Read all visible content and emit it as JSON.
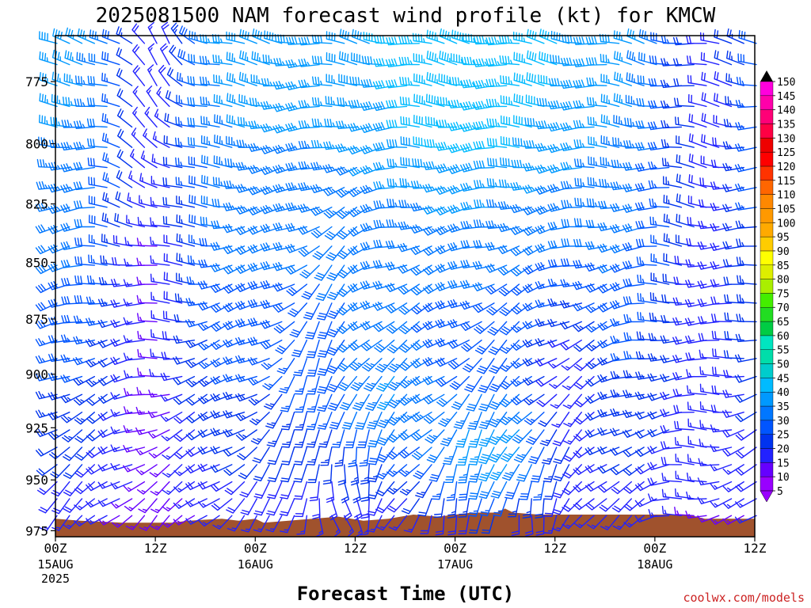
{
  "chart_data": {
    "type": "wind-barb time-height profile",
    "title": "2025081500 NAM forecast wind profile (kt) for KMCW",
    "xlabel": "Forecast Time (UTC)",
    "ylabel": "",
    "x_axis": {
      "unit": "hours",
      "range": [
        0,
        84
      ],
      "ticks": [
        {
          "hour": 0,
          "label": "00Z",
          "sub": [
            "15AUG",
            "2025"
          ]
        },
        {
          "hour": 12,
          "label": "12Z",
          "sub": []
        },
        {
          "hour": 24,
          "label": "00Z",
          "sub": [
            "16AUG"
          ]
        },
        {
          "hour": 36,
          "label": "12Z",
          "sub": []
        },
        {
          "hour": 48,
          "label": "00Z",
          "sub": [
            "17AUG"
          ]
        },
        {
          "hour": 60,
          "label": "12Z",
          "sub": []
        },
        {
          "hour": 72,
          "label": "00Z",
          "sub": [
            "18AUG"
          ]
        },
        {
          "hour": 84,
          "label": "12Z",
          "sub": []
        }
      ]
    },
    "y_axis": {
      "unit": "hPa",
      "range": [
        978,
        757
      ],
      "scale": "log",
      "ticks": [
        775,
        800,
        825,
        850,
        875,
        900,
        925,
        950,
        975
      ]
    },
    "color_scale": {
      "unit": "kt",
      "levels": [
        5,
        10,
        15,
        20,
        25,
        30,
        35,
        40,
        45,
        50,
        55,
        60,
        65,
        70,
        75,
        80,
        85,
        90,
        95,
        100,
        105,
        110,
        115,
        120,
        125,
        130,
        135,
        140,
        145,
        150
      ],
      "colors": [
        "#9900ff",
        "#6600ff",
        "#2222ff",
        "#0033ee",
        "#0055ff",
        "#0077ff",
        "#0099ff",
        "#00bbff",
        "#00cccc",
        "#00ddaa",
        "#00e5c0",
        "#00cc44",
        "#22dd22",
        "#44ee00",
        "#aaee00",
        "#ddee00",
        "#ffff00",
        "#ffcc00",
        "#ffaa00",
        "#ff9900",
        "#ff8800",
        "#ff6600",
        "#ff3300",
        "#ff0000",
        "#ee0000",
        "#ff0044",
        "#ff0077",
        "#ff00aa",
        "#ff00dd",
        "#ff00ff"
      ]
    },
    "ground": {
      "color": "#a0522d",
      "surface_pressure": [
        {
          "hour": 0,
          "hPa": 969
        },
        {
          "hour": 3,
          "hPa": 970
        },
        {
          "hour": 8,
          "hPa": 971
        },
        {
          "hour": 14,
          "hPa": 971
        },
        {
          "hour": 16,
          "hPa": 970
        },
        {
          "hour": 20,
          "hPa": 969
        },
        {
          "hour": 22,
          "hPa": 970
        },
        {
          "hour": 24,
          "hPa": 969
        },
        {
          "hour": 25,
          "hPa": 971
        },
        {
          "hour": 28,
          "hPa": 970
        },
        {
          "hour": 34,
          "hPa": 968
        },
        {
          "hour": 37,
          "hPa": 970
        },
        {
          "hour": 40,
          "hPa": 969
        },
        {
          "hour": 43,
          "hPa": 967
        },
        {
          "hour": 46,
          "hPa": 968
        },
        {
          "hour": 50,
          "hPa": 966
        },
        {
          "hour": 53,
          "hPa": 966
        },
        {
          "hour": 54,
          "hPa": 964
        },
        {
          "hour": 55,
          "hPa": 966
        },
        {
          "hour": 58,
          "hPa": 967
        },
        {
          "hour": 70,
          "hPa": 967
        },
        {
          "hour": 76,
          "hPa": 967
        },
        {
          "hour": 78,
          "hPa": 969
        },
        {
          "hour": 84,
          "hPa": 969
        }
      ]
    },
    "credit": "coolwx.com/models"
  }
}
